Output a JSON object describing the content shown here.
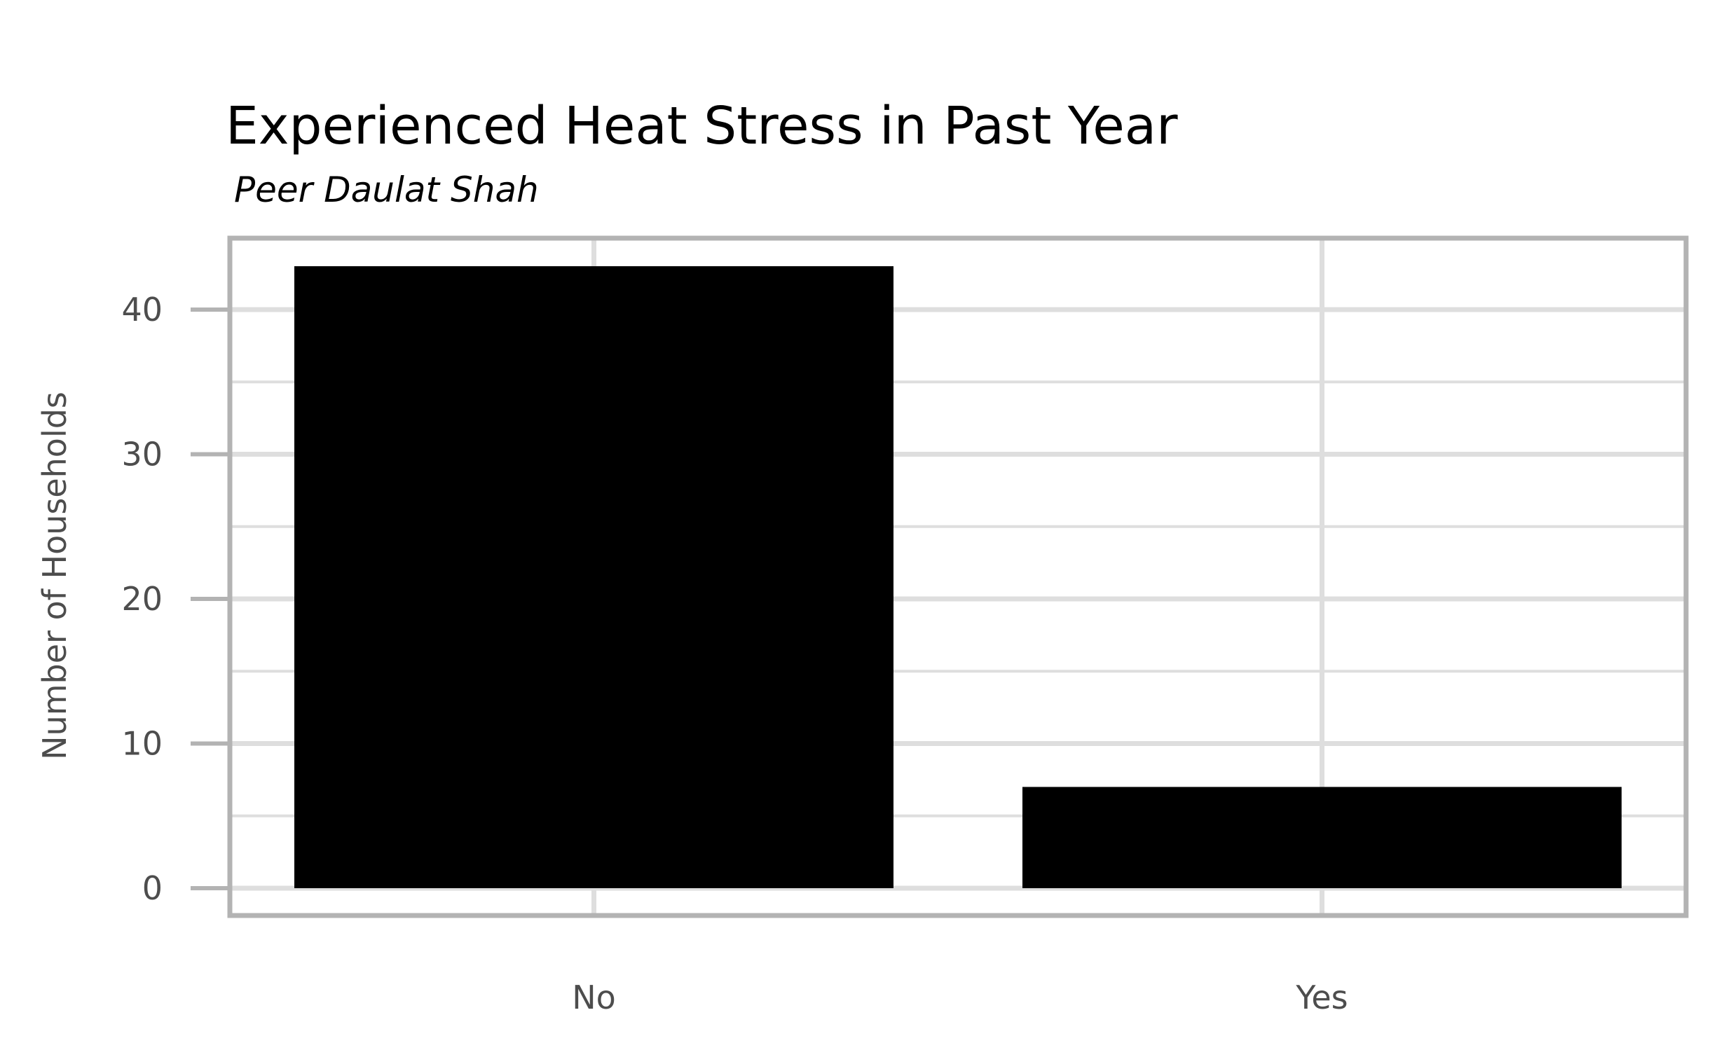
{
  "chart_data": {
    "type": "bar",
    "title": "Experienced Heat Stress in Past Year",
    "subtitle": "Peer Daulat Shah",
    "xlabel": "",
    "ylabel": "Number of Households",
    "categories": [
      "No",
      "Yes"
    ],
    "values": [
      43,
      7
    ],
    "yticks": [
      0,
      10,
      20,
      30,
      40
    ],
    "ylim": [
      0,
      45
    ],
    "grid": true,
    "legend": "none",
    "colors": {
      "bar": "#000000",
      "grid": "#dedede",
      "panel_border": "#b3b3b3",
      "text": "#4d4d4d",
      "background": "#ffffff"
    }
  }
}
